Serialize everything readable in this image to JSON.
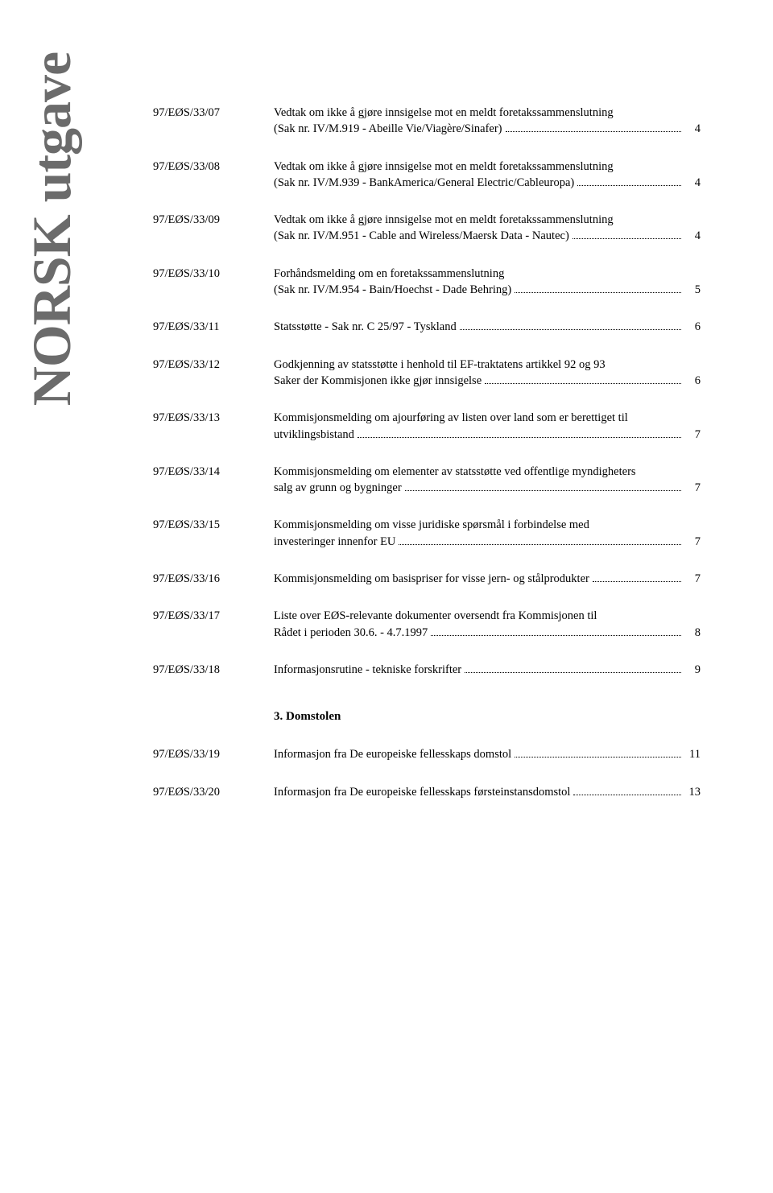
{
  "side_label": "NORSK utgave",
  "entries": [
    {
      "code": "97/EØS/33/07",
      "lines": [
        "Vedtak om ikke å gjøre innsigelse mot en meldt foretakssammenslutning"
      ],
      "last": "(Sak nr. IV/M.919 - Abeille Vie/Viagère/Sinafer)",
      "page": "4"
    },
    {
      "code": "97/EØS/33/08",
      "lines": [
        "Vedtak om ikke å gjøre innsigelse mot en meldt foretakssammenslutning"
      ],
      "last": "(Sak nr. IV/M.939 - BankAmerica/General Electric/Cableuropa)",
      "page": "4"
    },
    {
      "code": "97/EØS/33/09",
      "lines": [
        "Vedtak om ikke å gjøre innsigelse mot en meldt foretakssammenslutning"
      ],
      "last": "(Sak nr. IV/M.951 - Cable and Wireless/Maersk Data - Nautec)",
      "page": "4"
    },
    {
      "code": "97/EØS/33/10",
      "lines": [
        "Forhåndsmelding om en foretakssammenslutning"
      ],
      "last": "(Sak nr. IV/M.954 - Bain/Hoechst - Dade Behring)",
      "page": "5"
    },
    {
      "code": "97/EØS/33/11",
      "lines": [],
      "last": "Statsstøtte - Sak nr. C 25/97 - Tyskland",
      "page": "6"
    },
    {
      "code": "97/EØS/33/12",
      "lines": [
        "Godkjenning av statsstøtte i henhold til EF-traktatens artikkel 92 og 93"
      ],
      "last": "Saker der Kommisjonen ikke gjør innsigelse",
      "page": "6"
    },
    {
      "code": "97/EØS/33/13",
      "lines": [
        "Kommisjonsmelding om ajourføring av listen over land som er berettiget til"
      ],
      "last": "utviklingsbistand",
      "page": "7"
    },
    {
      "code": "97/EØS/33/14",
      "lines": [
        "Kommisjonsmelding om elementer av statsstøtte ved offentlige myndigheters"
      ],
      "last": "salg av grunn og bygninger",
      "page": "7"
    },
    {
      "code": "97/EØS/33/15",
      "lines": [
        "Kommisjonsmelding om visse juridiske spørsmål i forbindelse med"
      ],
      "last": "investeringer innenfor EU",
      "page": "7"
    },
    {
      "code": "97/EØS/33/16",
      "lines": [],
      "last": "Kommisjonsmelding om basispriser for visse jern- og stålprodukter",
      "page": "7"
    },
    {
      "code": "97/EØS/33/17",
      "lines": [
        "Liste over EØS-relevante dokumenter oversendt fra Kommisjonen til"
      ],
      "last": "Rådet i perioden 30.6. - 4.7.1997",
      "page": "8"
    },
    {
      "code": "97/EØS/33/18",
      "lines": [],
      "last": "Informasjonsrutine - tekniske forskrifter",
      "page": "9"
    }
  ],
  "section3_title": "3. Domstolen",
  "section3_entries": [
    {
      "code": "97/EØS/33/19",
      "lines": [],
      "last": "Informasjon fra De europeiske fellesskaps domstol",
      "page": "11"
    },
    {
      "code": "97/EØS/33/20",
      "lines": [],
      "last": "Informasjon fra De europeiske fellesskaps førsteinstansdomstol",
      "page": "13"
    }
  ]
}
